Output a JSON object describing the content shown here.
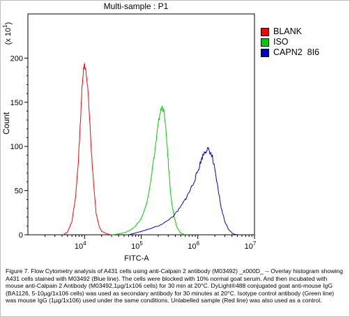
{
  "chart_data": {
    "type": "line",
    "title": "Multi-sample : P1",
    "xlabel": "FITC-A",
    "ylabel": "Count",
    "y_multiplier_label": "(x 10",
    "y_multiplier_exp": "1",
    "x_scale": "log",
    "xlim": [
      1000,
      10000000
    ],
    "ylim": [
      0,
      250
    ],
    "x_ticks": [
      {
        "base": "10",
        "exp": "4",
        "value": 10000
      },
      {
        "base": "10",
        "exp": "5",
        "value": 100000
      },
      {
        "base": "10",
        "exp": "6",
        "value": 1000000
      },
      {
        "base": "10",
        "exp": "7",
        "value": 10000000
      }
    ],
    "y_ticks": [
      0,
      50,
      100,
      150,
      200
    ],
    "grid": false,
    "legend_position": "right",
    "series": [
      {
        "name": "BLANK",
        "color": "#ff0000",
        "points": [
          [
            4200,
            0
          ],
          [
            5000,
            3
          ],
          [
            6000,
            15
          ],
          [
            7000,
            45
          ],
          [
            7800,
            85
          ],
          [
            8500,
            130
          ],
          [
            9000,
            165
          ],
          [
            9600,
            188
          ],
          [
            10000,
            192
          ],
          [
            10600,
            185
          ],
          [
            11300,
            170
          ],
          [
            12200,
            135
          ],
          [
            13200,
            95
          ],
          [
            14500,
            55
          ],
          [
            16000,
            25
          ],
          [
            18000,
            10
          ],
          [
            20000,
            4
          ],
          [
            25000,
            1
          ],
          [
            30000,
            0
          ]
        ]
      },
      {
        "name": "ISO",
        "color": "#00cc00",
        "points": [
          [
            30000,
            0
          ],
          [
            40000,
            1
          ],
          [
            55000,
            3
          ],
          [
            75000,
            8
          ],
          [
            100000,
            18
          ],
          [
            125000,
            35
          ],
          [
            150000,
            65
          ],
          [
            175000,
            95
          ],
          [
            195000,
            120
          ],
          [
            215000,
            138
          ],
          [
            235000,
            145
          ],
          [
            255000,
            138
          ],
          [
            280000,
            110
          ],
          [
            310000,
            70
          ],
          [
            340000,
            40
          ],
          [
            380000,
            20
          ],
          [
            430000,
            8
          ],
          [
            500000,
            2
          ],
          [
            600000,
            0
          ]
        ]
      },
      {
        "name": "CAPN2  8I6",
        "color": "#0000cc",
        "points": [
          [
            60000,
            0
          ],
          [
            90000,
            3
          ],
          [
            130000,
            6
          ],
          [
            200000,
            10
          ],
          [
            280000,
            15
          ],
          [
            380000,
            22
          ],
          [
            480000,
            30
          ],
          [
            600000,
            40
          ],
          [
            700000,
            48
          ],
          [
            850000,
            60
          ],
          [
            1000000,
            72
          ],
          [
            1150000,
            85
          ],
          [
            1300000,
            93
          ],
          [
            1450000,
            97
          ],
          [
            1600000,
            95
          ],
          [
            1800000,
            88
          ],
          [
            2000000,
            72
          ],
          [
            2300000,
            50
          ],
          [
            2600000,
            30
          ],
          [
            3000000,
            15
          ],
          [
            3500000,
            6
          ],
          [
            4200000,
            1
          ],
          [
            5000000,
            0
          ]
        ]
      }
    ]
  },
  "caption": "Figure 7. Flow Cytometry analysis of A431 cells using anti-Calpain 2 antibody (M03492) _x000D_ -- Overlay histogram showing A431 cells stained with M03492 (Blue line). The cells were blocked with 10% normal goat serum. And then incubated with mouse anti-Calpain 2 Antibody (M03492,1µg/1x106 cells) for 30 min at 20°C. DyLight®488 conjugated goat anti-mouse IgG (BA1126, 5-10µg/1x106 cells) was used as secondary antibody for 30 minutes at 20°C. Isotype control antibody (Green line) was mouse IgG (1µg/1x106) used under the same conditions. Unlabelled sample (Red line) was also used as a control."
}
